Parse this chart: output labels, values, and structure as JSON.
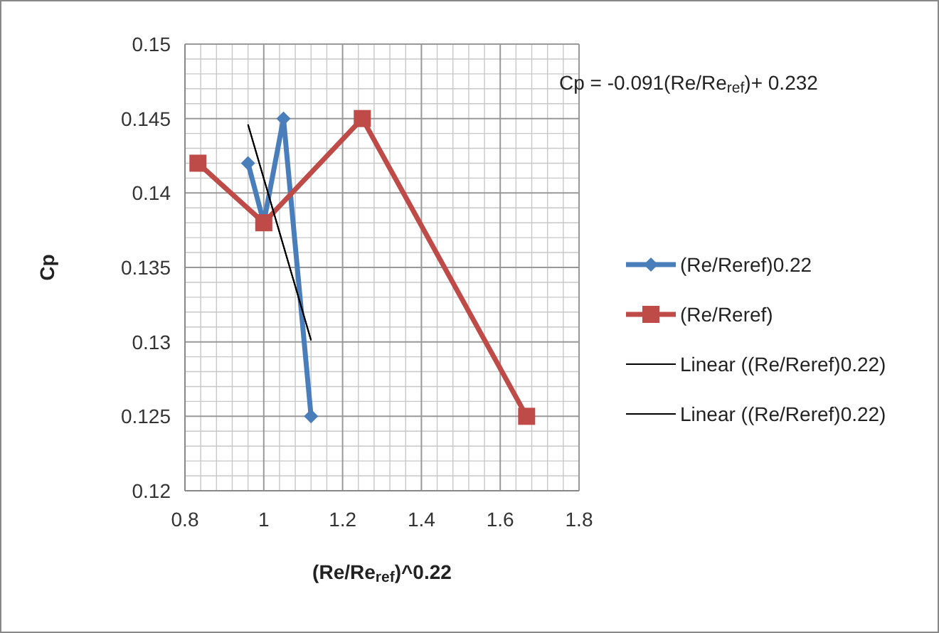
{
  "chart_data": {
    "type": "line",
    "xlabel": "(Re/Re$_{ref}$)^0.22",
    "ylabel": "Cp",
    "annotations": [
      "Cp = -0.091(Re/Re$_{ref}$)+ 0.232"
    ],
    "series": [
      {
        "name": "(Re/Reref)0.22",
        "color": "#4a7ebb",
        "marker": "diamond",
        "x": [
          0.96,
          1.0,
          1.05,
          1.12
        ],
        "values": [
          0.142,
          0.138,
          0.145,
          0.125
        ]
      },
      {
        "name": "(Re/Reref)",
        "color": "#be4b48",
        "marker": "square",
        "x": [
          0.833,
          1.0,
          1.25,
          1.667
        ],
        "values": [
          0.142,
          0.138,
          0.145,
          0.125
        ]
      },
      {
        "name": "Linear ((Re/Reref)0.22)",
        "color": "#000000",
        "marker": "none",
        "x": [
          0.96,
          1.12
        ],
        "values": [
          0.1446,
          0.1301
        ]
      },
      {
        "name": "Linear ((Re/Reref)0.22)",
        "color": "#000000",
        "marker": "none",
        "x": [
          0.96,
          1.12
        ],
        "values": [
          0.1446,
          0.1301
        ]
      }
    ],
    "xlim": [
      0.8,
      1.8
    ],
    "xticks": [
      0.8,
      1,
      1.2,
      1.4,
      1.6,
      1.8
    ],
    "ylim": [
      0.12,
      0.15
    ],
    "yticks": [
      0.12,
      0.125,
      0.13,
      0.135,
      0.14,
      0.145,
      0.15
    ],
    "grid": true,
    "legend": "right"
  }
}
